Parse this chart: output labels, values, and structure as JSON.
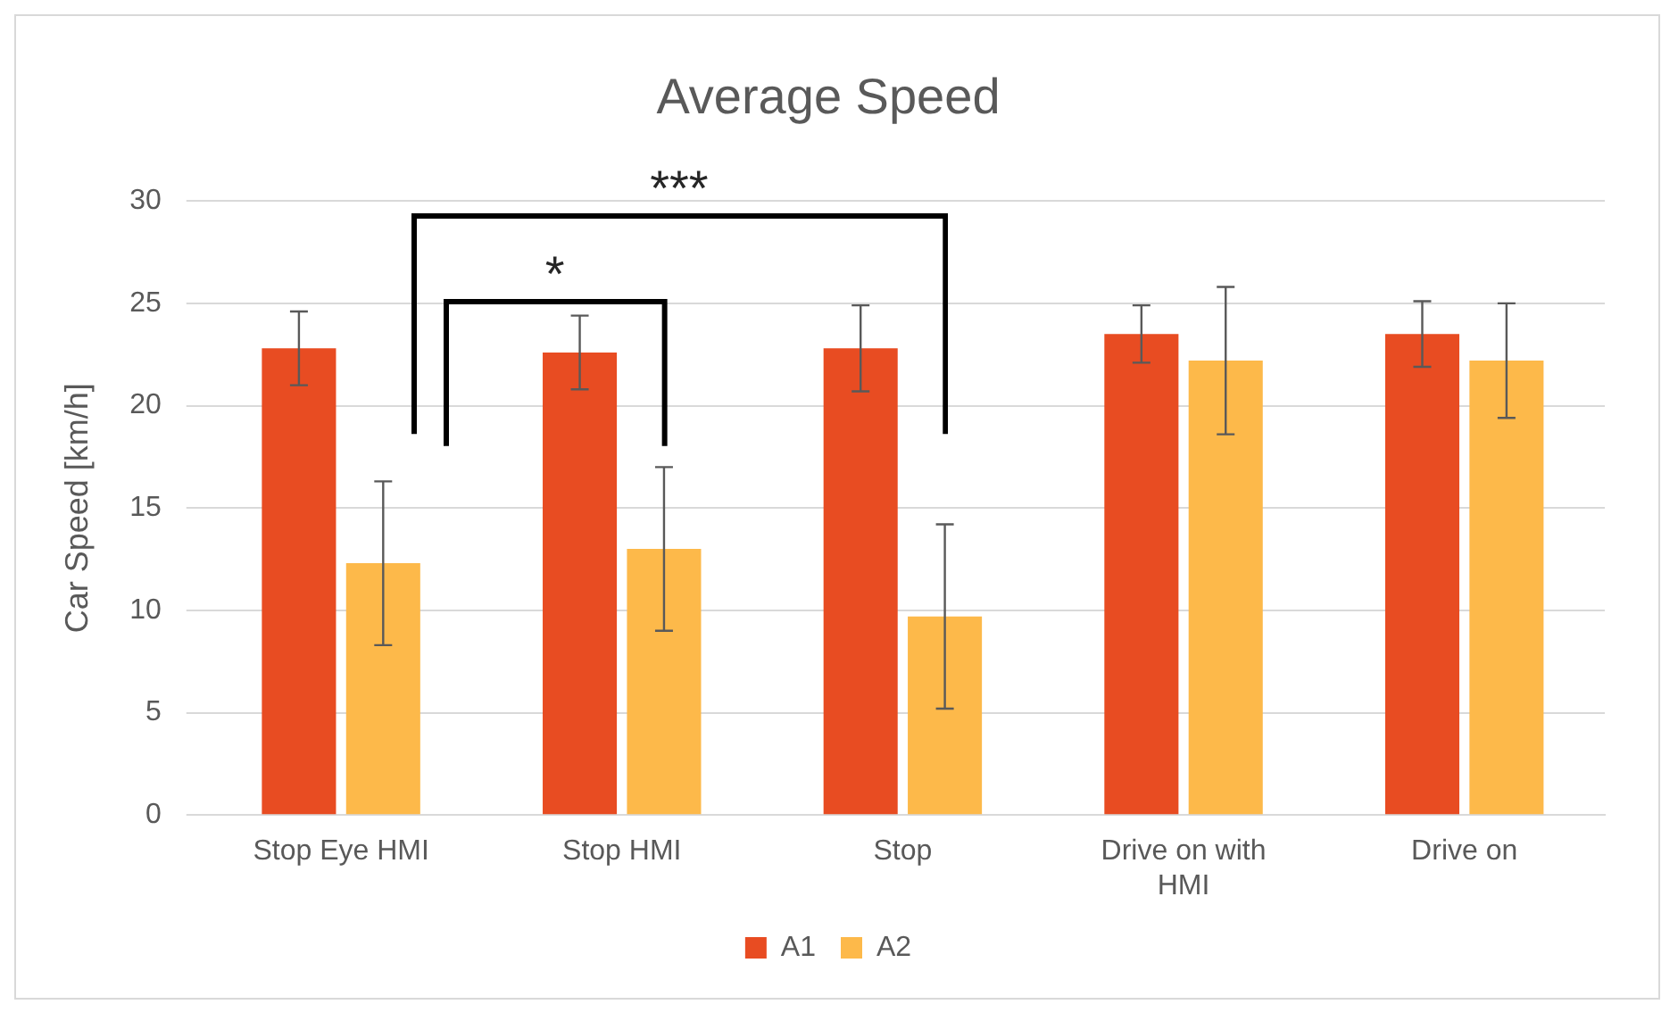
{
  "chart_data": {
    "type": "bar",
    "title": "Average Speed",
    "ylabel": "Car Speed [km/h]",
    "categories": [
      "Stop Eye HMI",
      "Stop HMI",
      "Stop",
      "Drive on with HMI",
      "Drive on"
    ],
    "series": [
      {
        "name": "A1",
        "color": "#e84c22",
        "values": [
          22.8,
          22.6,
          22.8,
          23.5,
          23.5
        ],
        "errors": [
          1.8,
          1.8,
          2.1,
          1.4,
          1.6
        ]
      },
      {
        "name": "A2",
        "color": "#fdb94a",
        "values": [
          12.3,
          13,
          9.7,
          22.2,
          22.2
        ],
        "errors": [
          4,
          4,
          4.5,
          3.6,
          2.8
        ]
      }
    ],
    "ylim": [
      0,
      30
    ],
    "yticks": [
      0,
      5,
      10,
      15,
      20,
      25,
      30
    ],
    "grid": "y",
    "legend": "bottom",
    "annotations": [
      "*",
      "***"
    ]
  }
}
